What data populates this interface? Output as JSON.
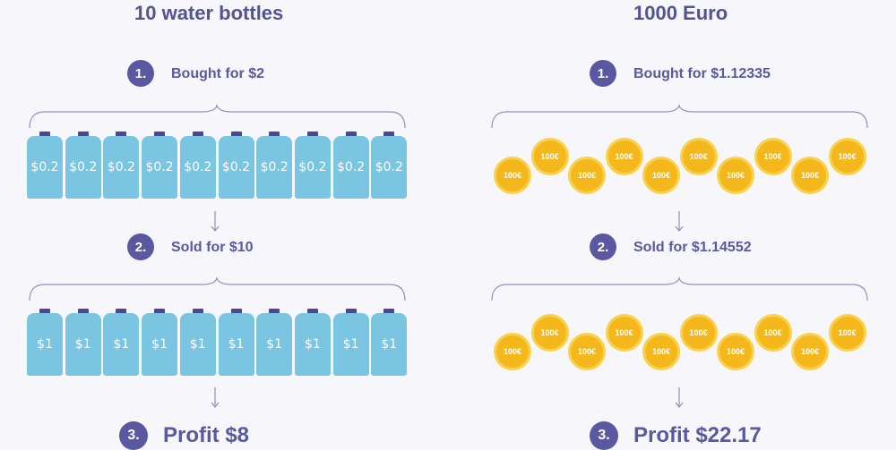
{
  "left": {
    "title": "10 water bottles",
    "steps": [
      {
        "number": "1.",
        "label": "Bought for $2"
      },
      {
        "number": "2.",
        "label": "Sold for $10"
      },
      {
        "number": "3.",
        "label": "Profit $8"
      }
    ],
    "bottles_row1": [
      "$0.2",
      "$0.2",
      "$0.2",
      "$0.2",
      "$0.2",
      "$0.2",
      "$0.2",
      "$0.2",
      "$0.2",
      "$0.2"
    ],
    "bottles_row2": [
      "$1",
      "$1",
      "$1",
      "$1",
      "$1",
      "$1",
      "$1",
      "$1",
      "$1",
      "$1"
    ]
  },
  "right": {
    "title": "1000 Euro",
    "steps": [
      {
        "number": "1.",
        "label": "Bought for $1.12335"
      },
      {
        "number": "2.",
        "label": "Sold for $1.14552"
      },
      {
        "number": "3.",
        "label": "Profit $22.17"
      }
    ],
    "coins_row1": [
      "100€",
      "100€",
      "100€",
      "100€",
      "100€",
      "100€",
      "100€",
      "100€",
      "100€",
      "100€"
    ],
    "coins_row2": [
      "100€",
      "100€",
      "100€",
      "100€",
      "100€",
      "100€",
      "100€",
      "100€",
      "100€",
      "100€"
    ]
  },
  "colors": {
    "background": "#f7f7fb",
    "accent": "#5a58a0",
    "bottle": "#79c5e2",
    "bottle_cap": "#4b4695",
    "coin": "#f5b81c",
    "coin_rim": "#f8d24e",
    "line": "#8f8fbf"
  }
}
